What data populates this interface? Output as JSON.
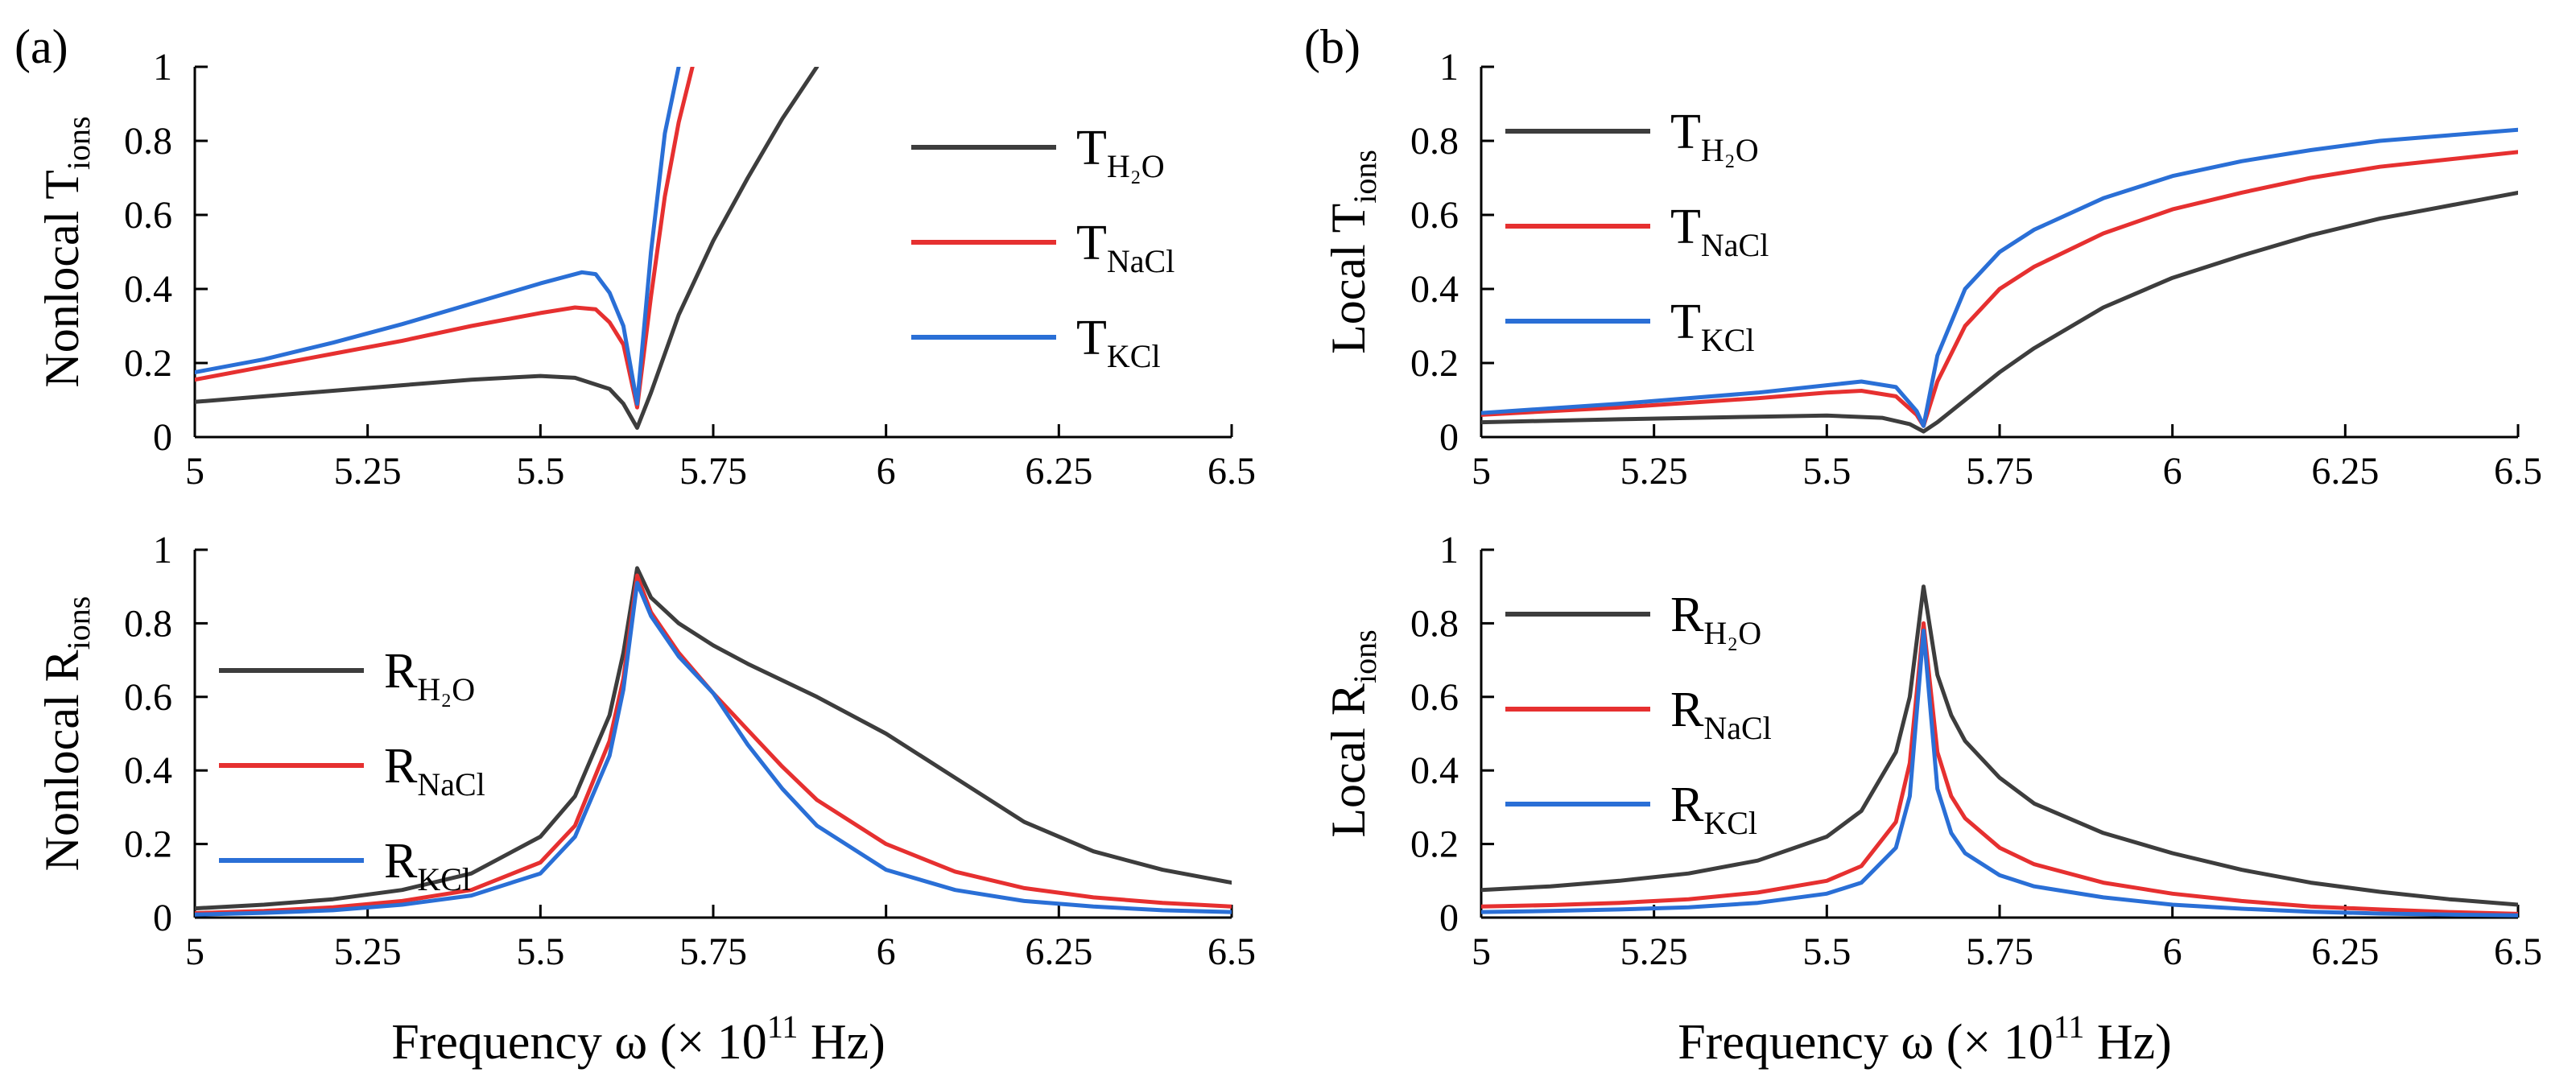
{
  "figure": {
    "xlabel": "Frequency ω (× 10",
    "xlabel_exp": "11",
    "xlabel_unit": " Hz)",
    "ylabel_subscript": "ions"
  },
  "chart_data": [
    {
      "id": "nonlocal_T",
      "panel_label": "(a)",
      "type": "line",
      "ylabel": "Nonlocal T",
      "xlim": [
        5,
        6.5
      ],
      "ylim": [
        0,
        1
      ],
      "xticks": [
        "5",
        "5.25",
        "5.5",
        "5.75",
        "6",
        "6.25",
        "6.5"
      ],
      "yticks": [
        "0",
        "0.2",
        "0.4",
        "0.6",
        "0.8",
        "1"
      ],
      "legend_position": "top-right",
      "series": [
        {
          "name": "T",
          "sub": "H₂O",
          "color": "#3d3d3d",
          "x": [
            5,
            5.1,
            5.2,
            5.3,
            5.4,
            5.5,
            5.55,
            5.6,
            5.62,
            5.64,
            5.66,
            5.7,
            5.75,
            5.8,
            5.85,
            5.9
          ],
          "y": [
            0.095,
            0.11,
            0.125,
            0.14,
            0.155,
            0.165,
            0.16,
            0.13,
            0.09,
            0.025,
            0.12,
            0.33,
            0.53,
            0.7,
            0.86,
            1.0
          ]
        },
        {
          "name": "T",
          "sub": "NaCl",
          "color": "#e63030",
          "x": [
            5,
            5.1,
            5.2,
            5.3,
            5.4,
            5.5,
            5.55,
            5.58,
            5.6,
            5.62,
            5.64,
            5.66,
            5.68,
            5.7,
            5.72
          ],
          "y": [
            0.155,
            0.19,
            0.225,
            0.26,
            0.3,
            0.335,
            0.35,
            0.345,
            0.31,
            0.25,
            0.08,
            0.38,
            0.65,
            0.85,
            1.0
          ]
        },
        {
          "name": "T",
          "sub": "KCl",
          "color": "#2a6fd6",
          "x": [
            5,
            5.1,
            5.2,
            5.3,
            5.4,
            5.5,
            5.56,
            5.58,
            5.6,
            5.62,
            5.64,
            5.66,
            5.68,
            5.7
          ],
          "y": [
            0.175,
            0.21,
            0.255,
            0.305,
            0.36,
            0.415,
            0.445,
            0.44,
            0.39,
            0.3,
            0.09,
            0.5,
            0.82,
            1.0
          ]
        }
      ]
    },
    {
      "id": "local_T",
      "panel_label": "(b)",
      "type": "line",
      "ylabel": "Local T",
      "xlim": [
        5,
        6.5
      ],
      "ylim": [
        0,
        1
      ],
      "xticks": [
        "5",
        "5.25",
        "5.5",
        "5.75",
        "6",
        "6.25",
        "6.5"
      ],
      "yticks": [
        "0",
        "0.2",
        "0.4",
        "0.6",
        "0.8",
        "1"
      ],
      "legend_position": "top-left",
      "series": [
        {
          "name": "T",
          "sub": "H₂O",
          "color": "#3d3d3d",
          "x": [
            5,
            5.2,
            5.4,
            5.5,
            5.58,
            5.62,
            5.64,
            5.66,
            5.7,
            5.75,
            5.8,
            5.9,
            6,
            6.1,
            6.2,
            6.3,
            6.4,
            6.5
          ],
          "y": [
            0.04,
            0.048,
            0.055,
            0.058,
            0.052,
            0.035,
            0.015,
            0.04,
            0.1,
            0.175,
            0.24,
            0.35,
            0.43,
            0.49,
            0.545,
            0.59,
            0.625,
            0.66
          ]
        },
        {
          "name": "T",
          "sub": "NaCl",
          "color": "#e63030",
          "x": [
            5,
            5.2,
            5.4,
            5.5,
            5.55,
            5.6,
            5.63,
            5.64,
            5.66,
            5.7,
            5.75,
            5.8,
            5.9,
            6,
            6.1,
            6.2,
            6.3,
            6.4,
            6.5
          ],
          "y": [
            0.06,
            0.08,
            0.105,
            0.12,
            0.125,
            0.11,
            0.06,
            0.03,
            0.15,
            0.3,
            0.4,
            0.46,
            0.55,
            0.615,
            0.66,
            0.7,
            0.73,
            0.75,
            0.77
          ]
        },
        {
          "name": "T",
          "sub": "KCl",
          "color": "#2a6fd6",
          "x": [
            5,
            5.2,
            5.4,
            5.5,
            5.55,
            5.6,
            5.63,
            5.64,
            5.66,
            5.7,
            5.75,
            5.8,
            5.9,
            6,
            6.1,
            6.2,
            6.3,
            6.4,
            6.5
          ],
          "y": [
            0.065,
            0.09,
            0.12,
            0.14,
            0.15,
            0.135,
            0.07,
            0.03,
            0.22,
            0.4,
            0.5,
            0.56,
            0.645,
            0.705,
            0.745,
            0.775,
            0.8,
            0.815,
            0.83
          ]
        }
      ]
    },
    {
      "id": "nonlocal_R",
      "panel_label": "",
      "type": "line",
      "ylabel": "Nonlocal R",
      "xlim": [
        5,
        6.5
      ],
      "ylim": [
        0,
        1
      ],
      "xticks": [
        "5",
        "5.25",
        "5.5",
        "5.75",
        "6",
        "6.25",
        "6.5"
      ],
      "yticks": [
        "0",
        "0.2",
        "0.4",
        "0.6",
        "0.8",
        "1"
      ],
      "legend_position": "middle-left",
      "series": [
        {
          "name": "R",
          "sub": "H₂O",
          "color": "#3d3d3d",
          "x": [
            5,
            5.1,
            5.2,
            5.3,
            5.4,
            5.5,
            5.55,
            5.6,
            5.62,
            5.64,
            5.66,
            5.7,
            5.75,
            5.8,
            5.9,
            6,
            6.1,
            6.2,
            6.3,
            6.4,
            6.5
          ],
          "y": [
            0.025,
            0.035,
            0.05,
            0.075,
            0.12,
            0.22,
            0.33,
            0.55,
            0.72,
            0.95,
            0.87,
            0.8,
            0.74,
            0.69,
            0.6,
            0.5,
            0.38,
            0.26,
            0.18,
            0.13,
            0.095
          ]
        },
        {
          "name": "R",
          "sub": "NaCl",
          "color": "#e63030",
          "x": [
            5,
            5.1,
            5.2,
            5.3,
            5.4,
            5.5,
            5.55,
            5.6,
            5.62,
            5.64,
            5.66,
            5.7,
            5.75,
            5.8,
            5.85,
            5.9,
            6,
            6.1,
            6.2,
            6.3,
            6.4,
            6.5
          ],
          "y": [
            0.012,
            0.018,
            0.028,
            0.045,
            0.075,
            0.15,
            0.25,
            0.48,
            0.65,
            0.93,
            0.83,
            0.72,
            0.61,
            0.51,
            0.41,
            0.32,
            0.2,
            0.125,
            0.08,
            0.055,
            0.04,
            0.03
          ]
        },
        {
          "name": "R",
          "sub": "KCl",
          "color": "#2a6fd6",
          "x": [
            5,
            5.1,
            5.2,
            5.3,
            5.4,
            5.5,
            5.55,
            5.6,
            5.62,
            5.64,
            5.66,
            5.7,
            5.75,
            5.8,
            5.85,
            5.9,
            6,
            6.1,
            6.2,
            6.3,
            6.4,
            6.5
          ],
          "y": [
            0.008,
            0.013,
            0.02,
            0.035,
            0.06,
            0.12,
            0.22,
            0.44,
            0.62,
            0.91,
            0.82,
            0.71,
            0.61,
            0.47,
            0.35,
            0.25,
            0.13,
            0.075,
            0.045,
            0.03,
            0.02,
            0.015
          ]
        }
      ]
    },
    {
      "id": "local_R",
      "panel_label": "",
      "type": "line",
      "ylabel": "Local R",
      "xlim": [
        5,
        6.5
      ],
      "ylim": [
        0,
        1
      ],
      "xticks": [
        "5",
        "5.25",
        "5.5",
        "5.75",
        "6",
        "6.25",
        "6.5"
      ],
      "yticks": [
        "0",
        "0.2",
        "0.4",
        "0.6",
        "0.8",
        "1"
      ],
      "legend_position": "top-left",
      "series": [
        {
          "name": "R",
          "sub": "H₂O",
          "color": "#3d3d3d",
          "x": [
            5,
            5.1,
            5.2,
            5.3,
            5.4,
            5.5,
            5.55,
            5.6,
            5.62,
            5.64,
            5.66,
            5.68,
            5.7,
            5.75,
            5.8,
            5.9,
            6,
            6.1,
            6.2,
            6.3,
            6.4,
            6.5
          ],
          "y": [
            0.075,
            0.085,
            0.1,
            0.12,
            0.155,
            0.22,
            0.29,
            0.45,
            0.6,
            0.9,
            0.66,
            0.55,
            0.48,
            0.38,
            0.31,
            0.23,
            0.175,
            0.13,
            0.095,
            0.07,
            0.05,
            0.035
          ]
        },
        {
          "name": "R",
          "sub": "NaCl",
          "color": "#e63030",
          "x": [
            5,
            5.1,
            5.2,
            5.3,
            5.4,
            5.5,
            5.55,
            5.6,
            5.62,
            5.64,
            5.66,
            5.68,
            5.7,
            5.75,
            5.8,
            5.9,
            6,
            6.1,
            6.2,
            6.3,
            6.4,
            6.5
          ],
          "y": [
            0.03,
            0.034,
            0.04,
            0.05,
            0.068,
            0.1,
            0.14,
            0.26,
            0.42,
            0.8,
            0.45,
            0.33,
            0.27,
            0.19,
            0.145,
            0.095,
            0.065,
            0.045,
            0.03,
            0.022,
            0.015,
            0.01
          ]
        },
        {
          "name": "R",
          "sub": "KCl",
          "color": "#2a6fd6",
          "x": [
            5,
            5.1,
            5.2,
            5.3,
            5.4,
            5.5,
            5.55,
            5.6,
            5.62,
            5.64,
            5.66,
            5.68,
            5.7,
            5.75,
            5.8,
            5.9,
            6,
            6.1,
            6.2,
            6.3,
            6.4,
            6.5
          ],
          "y": [
            0.015,
            0.018,
            0.022,
            0.028,
            0.04,
            0.065,
            0.095,
            0.19,
            0.33,
            0.78,
            0.35,
            0.23,
            0.175,
            0.115,
            0.085,
            0.055,
            0.035,
            0.024,
            0.016,
            0.011,
            0.008,
            0.006
          ]
        }
      ]
    }
  ]
}
